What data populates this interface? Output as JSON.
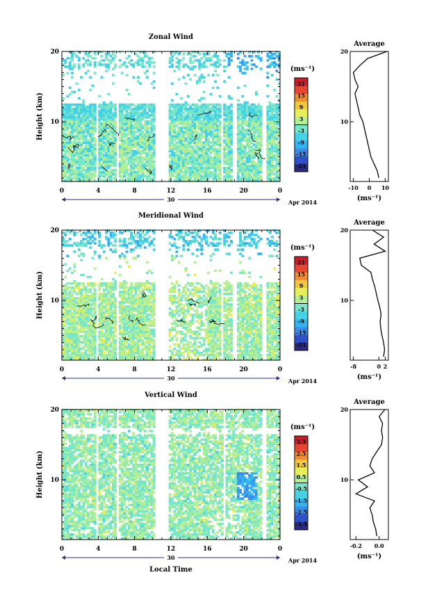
{
  "figure": {
    "x_axis_label": "Local Time",
    "date_day": "30",
    "date_month": "Apr 2014"
  },
  "colormap": [
    "#2a2a82",
    "#3050c8",
    "#3c8ce6",
    "#32b4f0",
    "#46d2e6",
    "#78e6c8",
    "#b4ee96",
    "#e6ee5a",
    "#f0c83c",
    "#f08c32",
    "#e64632",
    "#c81e2a"
  ],
  "chart_data": [
    {
      "type": "heatmap",
      "title": "Zonal Wind",
      "ylabel": "Height (km)",
      "x_ticks": [
        "0",
        "4",
        "8",
        "12",
        "16",
        "20",
        "0"
      ],
      "y_ticks": [
        "20",
        "10"
      ],
      "xlim": [
        0,
        24
      ],
      "ylim": [
        1.5,
        20
      ],
      "colorbar": {
        "unit": "(ms⁻¹)",
        "ticks": [
          "21",
          "15",
          "9",
          "3",
          "-3",
          "-9",
          "-15",
          "-21"
        ],
        "range": [
          -24,
          24
        ]
      },
      "profile": {
        "title": "Average",
        "x_ticks": [
          "-10",
          "0",
          "10"
        ],
        "y_ticks": [
          "20",
          "10"
        ],
        "xlim": [
          -12,
          12
        ],
        "xlabel": "(ms⁻¹)",
        "height": [
          2,
          3,
          4,
          5,
          6,
          7,
          8,
          9,
          10,
          11,
          12,
          13,
          14,
          15,
          16,
          17,
          18,
          19,
          20
        ],
        "value": [
          6,
          5,
          3,
          1,
          0,
          -1,
          -2,
          -3,
          -4,
          -6,
          -7,
          -8,
          -9,
          -7,
          -9,
          -10,
          -6,
          -1,
          11
        ]
      }
    },
    {
      "type": "heatmap",
      "title": "Meridional Wind",
      "ylabel": "Height (km)",
      "x_ticks": [
        "0",
        "4",
        "8",
        "12",
        "16",
        "20",
        "0"
      ],
      "y_ticks": [
        "20",
        "10"
      ],
      "xlim": [
        0,
        24
      ],
      "ylim": [
        1.5,
        20
      ],
      "colorbar": {
        "unit": "(ms⁻¹)",
        "ticks": [
          "21",
          "15",
          "9",
          "3",
          "-3",
          "-9",
          "-15",
          "-21"
        ],
        "range": [
          -24,
          24
        ]
      },
      "profile": {
        "title": "Average",
        "x_ticks": [
          "-8",
          "0",
          "2"
        ],
        "xlim": [
          -9,
          3
        ],
        "y_ticks": [
          "20",
          "10"
        ],
        "xlabel": "(ms⁻¹)",
        "height": [
          2,
          3,
          4,
          5,
          6,
          7,
          8,
          9,
          10,
          11,
          12,
          13,
          14,
          15,
          16,
          17,
          18,
          19,
          20
        ],
        "value": [
          1.5,
          1.8,
          1.5,
          1.0,
          0.6,
          0.4,
          0.7,
          0.3,
          -0.3,
          -0.8,
          -1.3,
          -2.0,
          -2.5,
          -5.5,
          -6.0,
          2.0,
          -1.5,
          1.5,
          -2.0
        ]
      }
    },
    {
      "type": "heatmap",
      "title": "Vertical Wind",
      "ylabel": "Height (km)",
      "x_ticks": [
        "0",
        "4",
        "8",
        "12",
        "16",
        "20",
        "0"
      ],
      "y_ticks": [
        "20",
        "10"
      ],
      "xlim": [
        0,
        24
      ],
      "ylim": [
        1.5,
        20
      ],
      "colorbar": {
        "unit": "(ms⁻¹)",
        "ticks": [
          "3.5",
          "2.5",
          "1.5",
          "0.5",
          "-0.5",
          "-1.5",
          "-2.5",
          "-3.5"
        ],
        "range": [
          -4,
          4
        ]
      },
      "profile": {
        "title": "Average",
        "x_ticks": [
          "-0.2",
          "0.0"
        ],
        "xlim": [
          -0.25,
          0.08
        ],
        "y_ticks": [
          "20",
          "10"
        ],
        "xlabel": "(ms⁻¹)",
        "height": [
          2,
          3,
          4,
          5,
          6,
          7,
          8,
          9,
          10,
          11,
          12,
          13,
          14,
          15,
          16,
          17,
          18,
          19,
          20
        ],
        "value": [
          -0.02,
          -0.03,
          -0.05,
          -0.06,
          -0.08,
          -0.04,
          -0.2,
          -0.1,
          -0.18,
          -0.04,
          -0.08,
          -0.06,
          -0.02,
          0.02,
          0.03,
          0.02,
          0.03,
          0.0,
          0.05
        ]
      }
    }
  ]
}
